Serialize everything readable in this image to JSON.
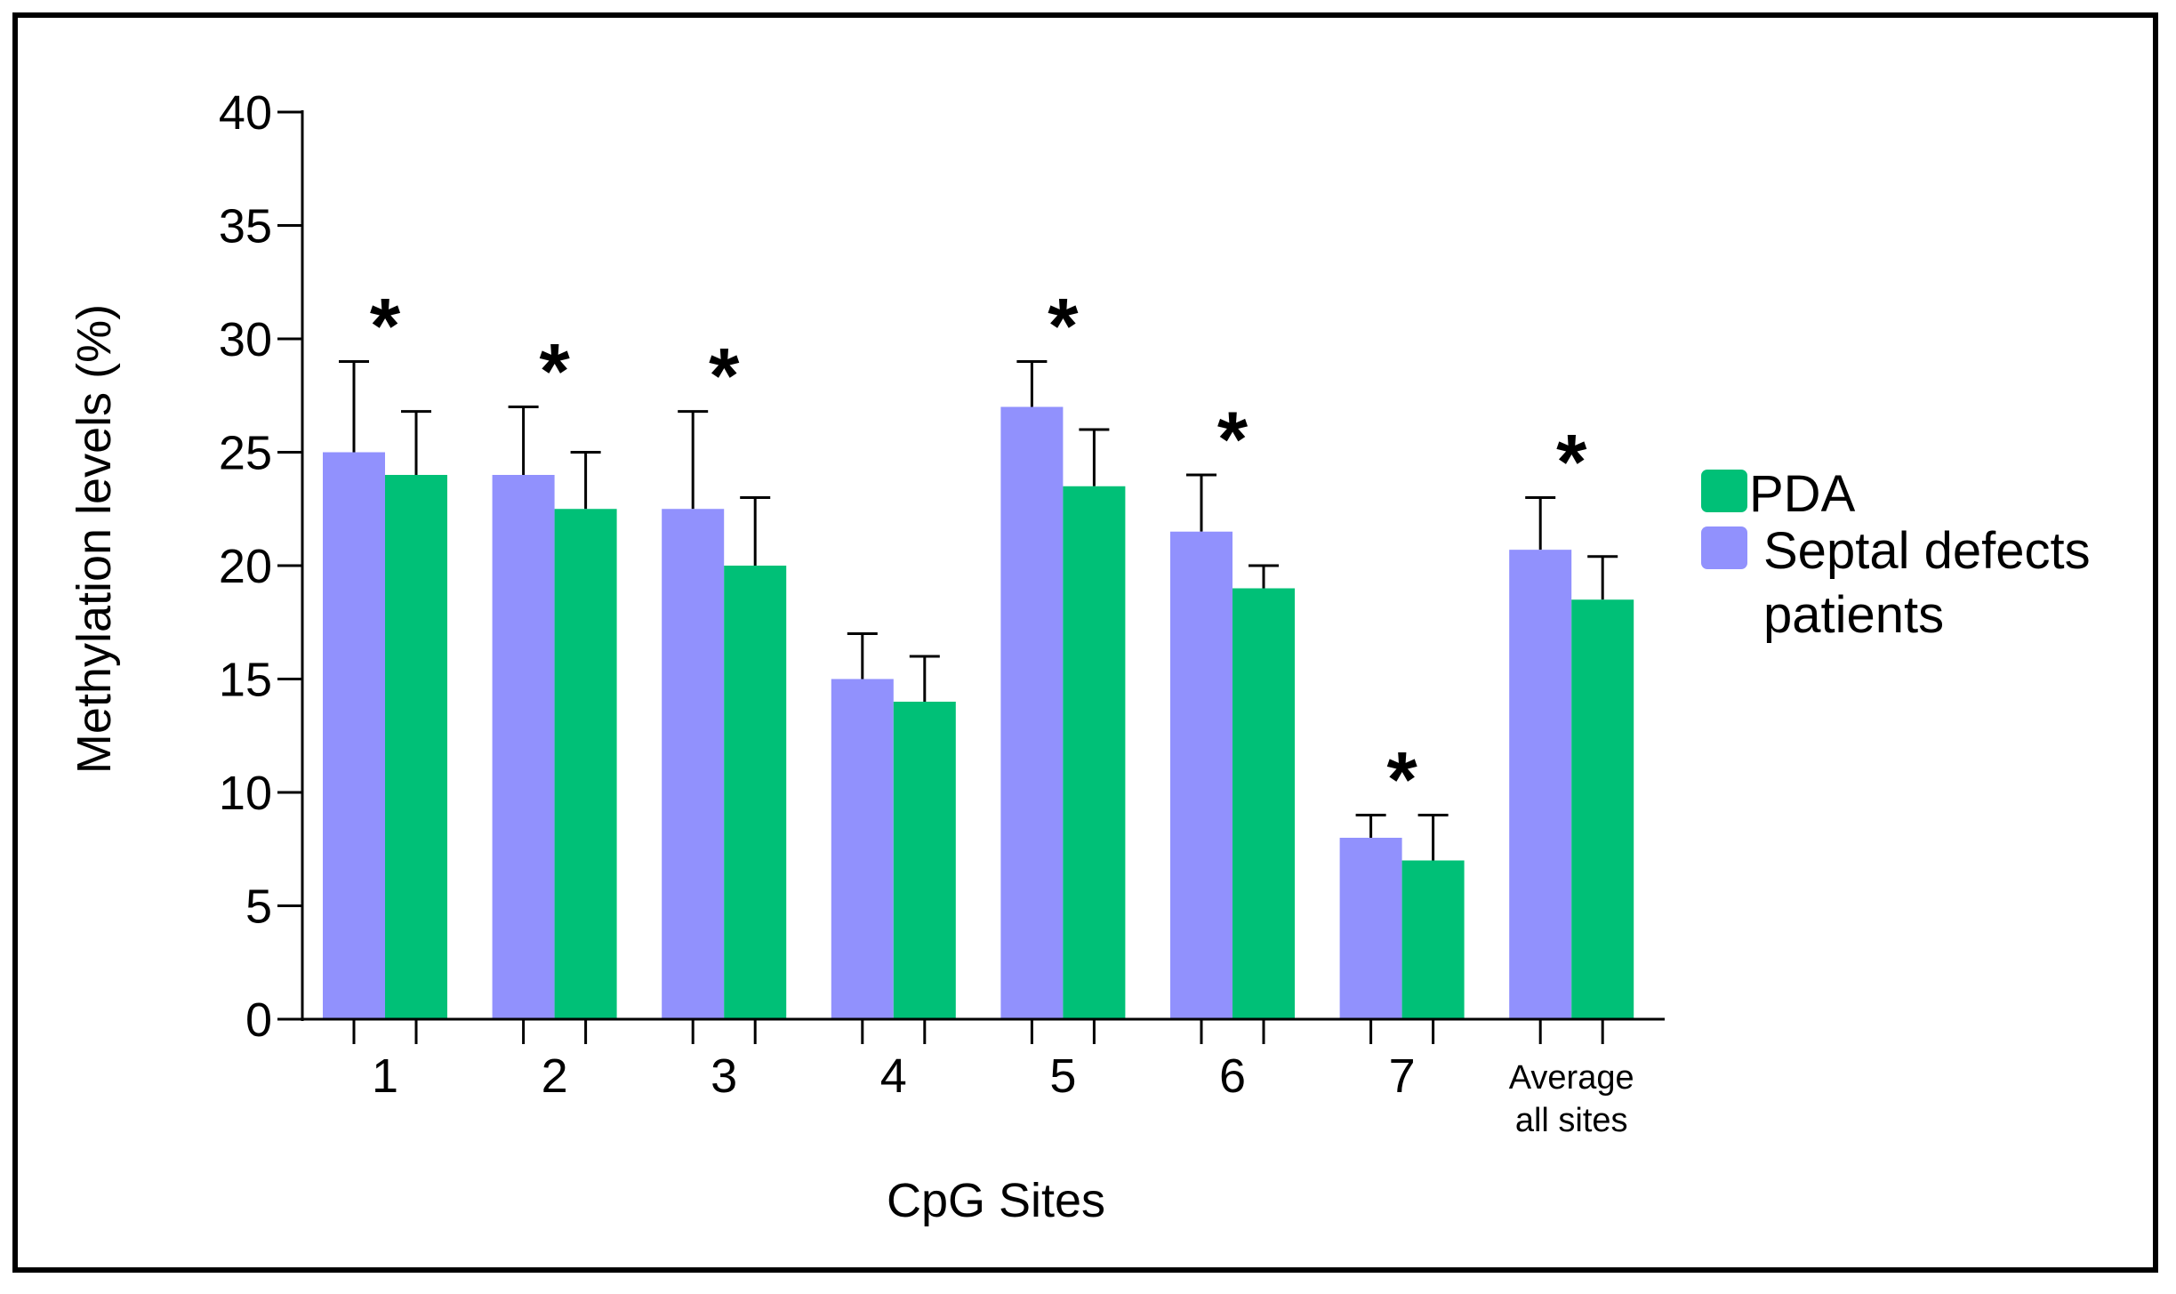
{
  "chart_data": {
    "type": "bar",
    "title": "",
    "xlabel": "CpG Sites",
    "ylabel": "Methylation levels (%)",
    "ylim": [
      0,
      40
    ],
    "yticks": [
      0,
      5,
      10,
      15,
      20,
      25,
      30,
      35,
      40
    ],
    "categories": [
      {
        "lines": [
          "1"
        ]
      },
      {
        "lines": [
          "2"
        ]
      },
      {
        "lines": [
          "3"
        ]
      },
      {
        "lines": [
          "4"
        ]
      },
      {
        "lines": [
          "5"
        ]
      },
      {
        "lines": [
          "6"
        ]
      },
      {
        "lines": [
          "7"
        ]
      },
      {
        "lines": [
          "Average",
          "all sites"
        ]
      }
    ],
    "series": [
      {
        "name": "Septal defects patients",
        "legend_lines": [
          "Septal defects",
          "patients"
        ],
        "color": "#9191fd",
        "values": [
          25,
          24,
          22.5,
          15,
          27,
          21.5,
          8,
          20.7
        ],
        "error_upper": [
          29,
          27,
          26.8,
          17,
          29,
          24,
          9,
          23
        ]
      },
      {
        "name": "PDA",
        "legend_lines": [
          "PDA"
        ],
        "color": "#00c077",
        "values": [
          24,
          22.5,
          20,
          14,
          23.5,
          19,
          7,
          18.5
        ],
        "error_upper": [
          26.8,
          25,
          23,
          16,
          26,
          20,
          9,
          20.4
        ]
      }
    ],
    "significance_marker": "*",
    "significant": [
      true,
      true,
      true,
      false,
      true,
      true,
      true,
      true
    ],
    "legend_position": "right",
    "grid": false
  }
}
